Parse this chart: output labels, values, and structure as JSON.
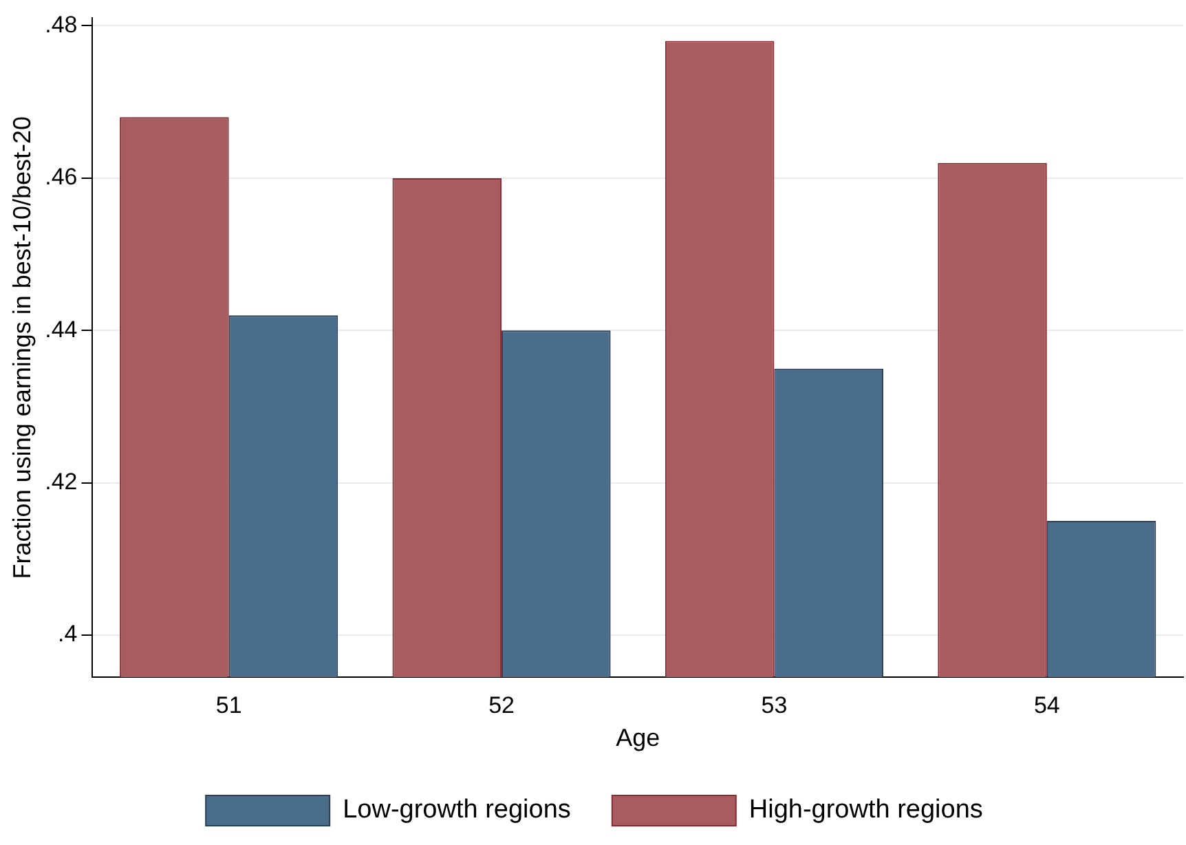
{
  "chart_data": {
    "type": "bar",
    "xlabel": "Age",
    "ylabel": "Fraction using earnings in best-10/best-20",
    "categories": [
      "51",
      "52",
      "53",
      "54"
    ],
    "series": [
      {
        "name": "High-growth regions",
        "color": "#a85c60",
        "values": [
          0.468,
          0.46,
          0.478,
          0.462
        ]
      },
      {
        "name": "Low-growth regions",
        "color": "#4a6d8c",
        "values": [
          0.442,
          0.44,
          0.435,
          0.415
        ]
      }
    ],
    "ylim": [
      0.3945,
      0.481
    ],
    "yticks": [
      {
        "value": 0.4,
        "label": ".4"
      },
      {
        "value": 0.42,
        "label": ".42"
      },
      {
        "value": 0.44,
        "label": ".44"
      },
      {
        "value": 0.46,
        "label": ".46"
      },
      {
        "value": 0.48,
        "label": ".48"
      }
    ],
    "grid": "y",
    "legend": "bottom"
  }
}
